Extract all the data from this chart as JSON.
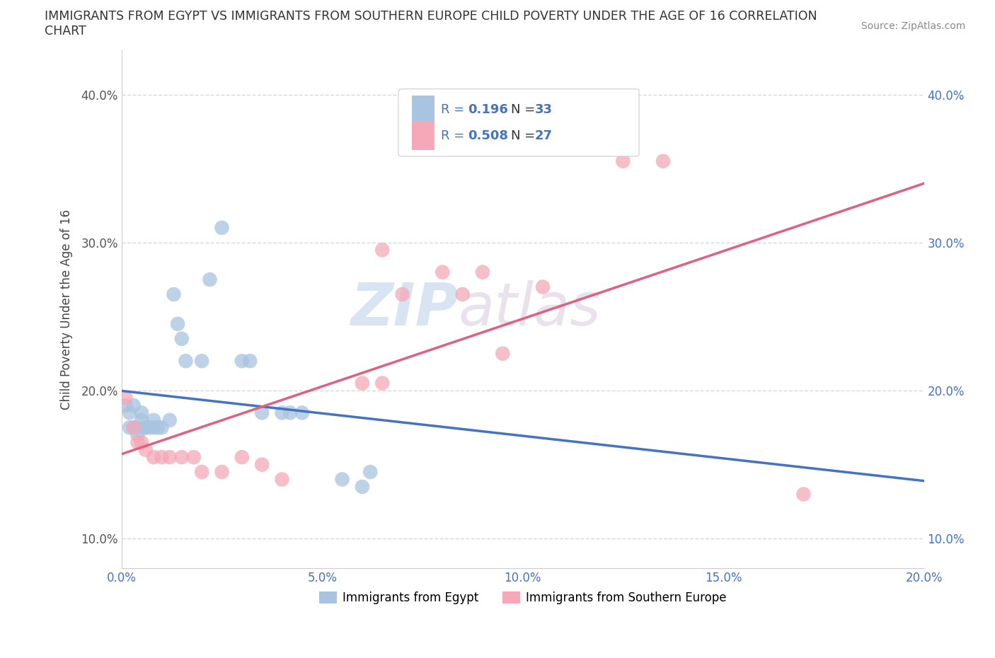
{
  "title": "IMMIGRANTS FROM EGYPT VS IMMIGRANTS FROM SOUTHERN EUROPE CHILD POVERTY UNDER THE AGE OF 16 CORRELATION\nCHART",
  "source": "Source: ZipAtlas.com",
  "ylabel": "Child Poverty Under the Age of 16",
  "xlim": [
    0.0,
    0.2
  ],
  "ylim": [
    0.08,
    0.43
  ],
  "xticks": [
    0.0,
    0.05,
    0.1,
    0.15,
    0.2
  ],
  "yticks": [
    0.1,
    0.2,
    0.3,
    0.4
  ],
  "egypt_color": "#a8c4e0",
  "south_europe_color": "#f4a8b8",
  "egypt_line_color": "#4472c4",
  "south_europe_line_color": "#e06080",
  "egypt_scatter": [
    [
      0.001,
      0.19
    ],
    [
      0.002,
      0.185
    ],
    [
      0.002,
      0.175
    ],
    [
      0.003,
      0.19
    ],
    [
      0.003,
      0.175
    ],
    [
      0.004,
      0.175
    ],
    [
      0.004,
      0.17
    ],
    [
      0.005,
      0.18
    ],
    [
      0.005,
      0.185
    ],
    [
      0.006,
      0.175
    ],
    [
      0.006,
      0.175
    ],
    [
      0.007,
      0.175
    ],
    [
      0.008,
      0.175
    ],
    [
      0.008,
      0.18
    ],
    [
      0.009,
      0.175
    ],
    [
      0.01,
      0.175
    ],
    [
      0.012,
      0.18
    ],
    [
      0.013,
      0.265
    ],
    [
      0.014,
      0.245
    ],
    [
      0.015,
      0.235
    ],
    [
      0.016,
      0.22
    ],
    [
      0.02,
      0.22
    ],
    [
      0.022,
      0.275
    ],
    [
      0.025,
      0.31
    ],
    [
      0.03,
      0.22
    ],
    [
      0.032,
      0.22
    ],
    [
      0.035,
      0.185
    ],
    [
      0.04,
      0.185
    ],
    [
      0.042,
      0.185
    ],
    [
      0.045,
      0.185
    ],
    [
      0.055,
      0.14
    ],
    [
      0.06,
      0.135
    ],
    [
      0.062,
      0.145
    ]
  ],
  "south_europe_scatter": [
    [
      0.001,
      0.195
    ],
    [
      0.003,
      0.175
    ],
    [
      0.004,
      0.165
    ],
    [
      0.005,
      0.165
    ],
    [
      0.006,
      0.16
    ],
    [
      0.008,
      0.155
    ],
    [
      0.01,
      0.155
    ],
    [
      0.012,
      0.155
    ],
    [
      0.015,
      0.155
    ],
    [
      0.018,
      0.155
    ],
    [
      0.02,
      0.145
    ],
    [
      0.025,
      0.145
    ],
    [
      0.03,
      0.155
    ],
    [
      0.035,
      0.15
    ],
    [
      0.04,
      0.14
    ],
    [
      0.06,
      0.205
    ],
    [
      0.065,
      0.205
    ],
    [
      0.065,
      0.295
    ],
    [
      0.07,
      0.265
    ],
    [
      0.08,
      0.28
    ],
    [
      0.085,
      0.265
    ],
    [
      0.09,
      0.28
    ],
    [
      0.095,
      0.225
    ],
    [
      0.105,
      0.27
    ],
    [
      0.125,
      0.355
    ],
    [
      0.135,
      0.355
    ],
    [
      0.17,
      0.13
    ]
  ],
  "watermark": "ZIPAtlas",
  "background_color": "#ffffff",
  "grid_color": "#d8d8d8"
}
